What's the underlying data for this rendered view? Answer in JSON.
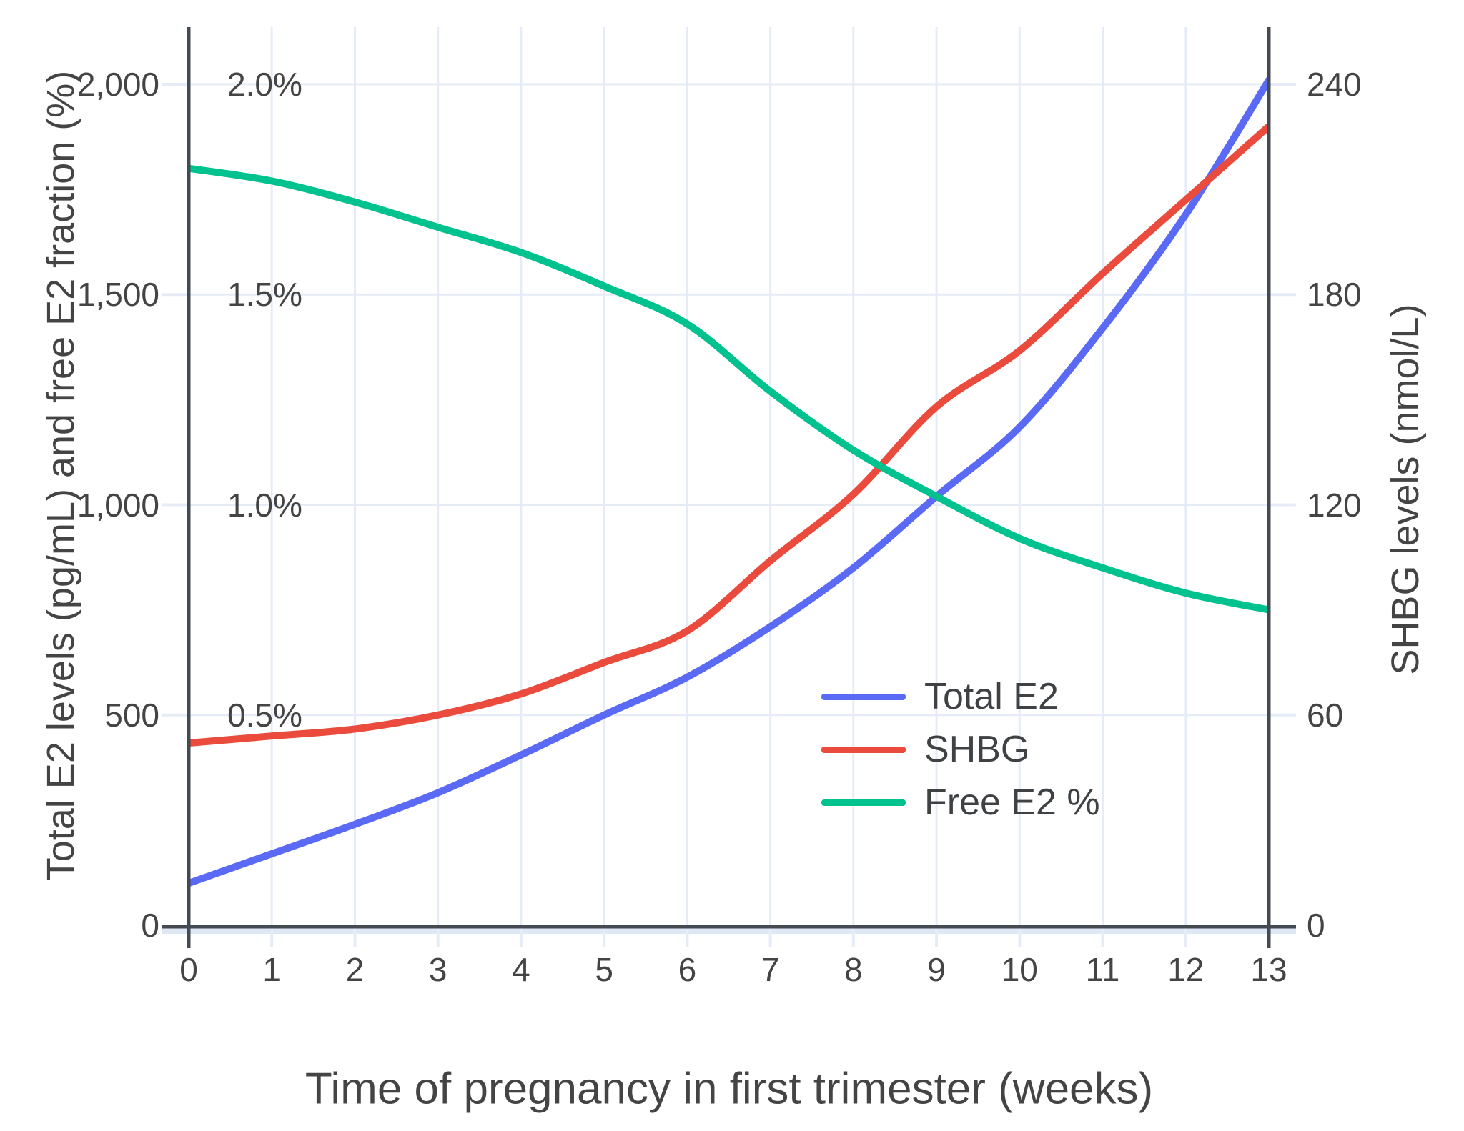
{
  "chart_data": {
    "type": "line",
    "title": "",
    "x_label": "Time of pregnancy in first trimester (weeks)",
    "y_left_label": "Total E2 levels (pg/mL) and free E2 fraction (%)",
    "y_right_label": "SHBG levels (nmol/L)",
    "x_weeks": [
      0,
      1,
      2,
      3,
      4,
      5,
      6,
      7,
      8,
      9,
      10,
      11,
      12,
      13
    ],
    "series": [
      {
        "name": "Total E2",
        "unit": "pg/mL",
        "axis": "left",
        "color": "#5B6AF5",
        "values": [
          100,
          170,
          240,
          315,
          405,
          500,
          590,
          710,
          850,
          1020,
          1185,
          1420,
          1690,
          2010
        ]
      },
      {
        "name": "SHBG",
        "unit": "nmol/L",
        "axis": "right",
        "color": "#EA4B3C",
        "values": [
          52,
          54,
          56,
          60,
          66,
          75,
          84,
          104,
          123,
          148,
          164,
          186,
          207,
          228
        ]
      },
      {
        "name": "Free E2 %",
        "unit": "%",
        "axis": "left-percent",
        "color": "#00C28E",
        "values": [
          1.8,
          1.77,
          1.72,
          1.66,
          1.6,
          1.52,
          1.43,
          1.27,
          1.13,
          1.02,
          0.92,
          0.85,
          0.79,
          0.75
        ]
      }
    ],
    "left_axis": {
      "tick_labels": [
        "0",
        "500",
        "1,000",
        "1,500",
        "2,000"
      ],
      "tick_values": [
        0,
        500,
        1000,
        1500,
        2000
      ],
      "range": [
        0,
        2135
      ]
    },
    "left_percent_axis": {
      "tick_labels": [
        "0.5%",
        "1.0%",
        "1.5%",
        "2.0%"
      ],
      "tick_values": [
        0.5,
        1.0,
        1.5,
        2.0
      ]
    },
    "right_axis": {
      "tick_labels": [
        "0",
        "60",
        "120",
        "180",
        "240"
      ],
      "tick_values": [
        0,
        60,
        120,
        180,
        240
      ],
      "range": [
        0,
        256
      ]
    },
    "x_axis": {
      "tick_labels": [
        "0",
        "1",
        "2",
        "3",
        "4",
        "5",
        "6",
        "7",
        "8",
        "9",
        "10",
        "11",
        "12",
        "13"
      ],
      "tick_values": [
        0,
        1,
        2,
        3,
        4,
        5,
        6,
        7,
        8,
        9,
        10,
        11,
        12,
        13
      ]
    },
    "legend": {
      "position": "inside-right",
      "entries": [
        "Total E2",
        "SHBG",
        "Free E2 %"
      ]
    },
    "grid": true,
    "styles": {
      "background": "#FFFFFF",
      "grid_color": "#E6ECF7",
      "zero_line_color": "#DFE7F4",
      "axis_color": "#434A52",
      "text_color": "#444444"
    }
  }
}
